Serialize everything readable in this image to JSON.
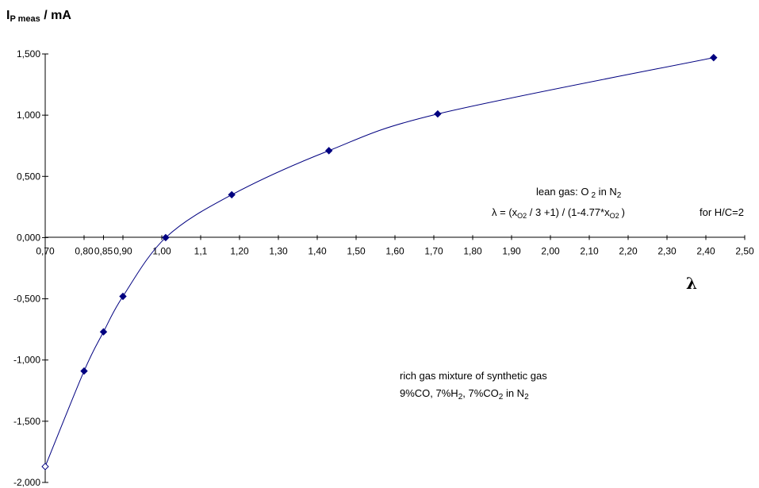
{
  "chart_data": {
    "type": "line",
    "ylabel_main": "I",
    "ylabel_sub": "P meas",
    "ylabel_rest": " / mA",
    "xlabel": "λ",
    "xlim": [
      0.7,
      2.5
    ],
    "ylim": [
      -2.0,
      1.5
    ],
    "x_ticks": [
      0.7,
      0.8,
      0.85,
      0.9,
      1.0,
      1.1,
      1.2,
      1.3,
      1.4,
      1.5,
      1.6,
      1.7,
      1.8,
      1.9,
      2.0,
      2.1,
      2.2,
      2.3,
      2.4,
      2.5
    ],
    "x_tick_labels": [
      "0,70",
      "0,80",
      "0,85",
      "0,90",
      "1,00",
      "1,1",
      "1,20",
      "1,30",
      "1,40",
      "1,50",
      "1,60",
      "1,70",
      "1,80",
      "1,90",
      "2,00",
      "2,10",
      "2,20",
      "2,30",
      "2,40",
      "2,50"
    ],
    "y_ticks": [
      1.5,
      1.0,
      0.5,
      0.0,
      -0.5,
      -1.0,
      -1.5,
      -2.0
    ],
    "y_tick_labels": [
      "1,500",
      "1,000",
      "0,500",
      "0,000",
      "-0,500",
      "-1,000",
      "-1,500",
      "-2,000"
    ],
    "grid": false,
    "series": [
      {
        "color": "#000080",
        "points": [
          {
            "x": 0.7,
            "y": -1.87,
            "open": true
          },
          {
            "x": 0.8,
            "y": -1.09
          },
          {
            "x": 0.85,
            "y": -0.77
          },
          {
            "x": 0.9,
            "y": -0.48
          },
          {
            "x": 1.01,
            "y": 0.0
          },
          {
            "x": 1.18,
            "y": 0.35
          },
          {
            "x": 1.43,
            "y": 0.71
          },
          {
            "x": 1.71,
            "y": 1.01
          },
          {
            "x": 2.42,
            "y": 1.47
          }
        ]
      }
    ],
    "annotations": {
      "lean": {
        "line1_a": "lean gas: O",
        "line1_sub": "2",
        "line1_b": "  in N",
        "line1_sub2": "2",
        "line2_a": "λ = (x",
        "line2_sub1": "O2",
        "line2_b": " / 3 +1) / (1-4.77*x",
        "line2_sub2": "O2",
        "line2_c": ")",
        "line2_d": "for H/C=2"
      },
      "rich": {
        "line1": "rich gas mixture of  synthetic gas",
        "line2_a": "9%CO, 7%H",
        "line2_sub1": "2",
        "line2_b": ", 7%CO",
        "line2_sub2": "2",
        "line2_c": "  in N",
        "line2_sub3": "2"
      }
    }
  }
}
